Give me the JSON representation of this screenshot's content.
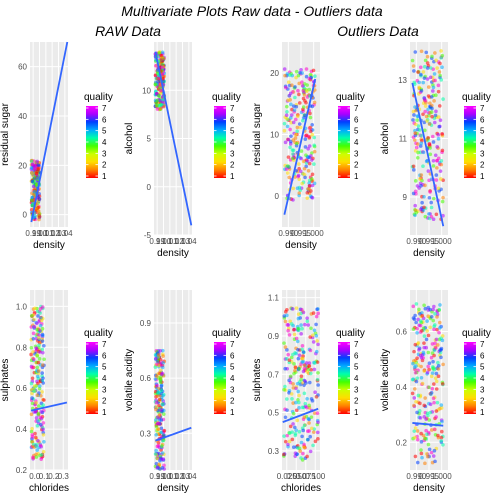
{
  "title": "Multivariate Plots Raw data - Outliers data",
  "subtitles": [
    "RAW Data",
    "Outliers Data"
  ],
  "legend": {
    "title": "quality",
    "labels": [
      "7",
      "6",
      "5",
      "4",
      "3",
      "2",
      "1"
    ]
  },
  "chart_data": [
    {
      "type": "scatter",
      "group": "RAW Data",
      "xlabel": "density",
      "ylabel": "residual sugar",
      "xticks": [
        "0.99",
        "1.00",
        "1.01",
        "1.02",
        "1.03",
        "1.04"
      ],
      "xlim": [
        0.985,
        1.04
      ],
      "yticks": [
        "0",
        "20",
        "40",
        "60"
      ],
      "yticks_values": [
        0,
        20,
        40,
        60
      ],
      "ylim": [
        -5,
        70
      ],
      "trend": {
        "x": [
          0.987,
          1.039
        ],
        "y": [
          -3,
          70
        ],
        "color": "#3366ff"
      },
      "cloud": {
        "xmin": 0.987,
        "xmax": 0.999,
        "ymin": -2,
        "ymax": 22,
        "n": 220
      }
    },
    {
      "type": "scatter",
      "group": "RAW Data",
      "xlabel": "density",
      "ylabel": "alcohol",
      "xticks": [
        "0.99",
        "1.00",
        "1.01",
        "1.02",
        "1.03",
        "1.04"
      ],
      "xlim": [
        0.985,
        1.04
      ],
      "yticks": [
        "-5",
        "0",
        "5",
        "10"
      ],
      "yticks_values": [
        -5,
        0,
        5,
        10
      ],
      "ylim": [
        -5,
        15
      ],
      "trend": {
        "x": [
          0.987,
          1.039
        ],
        "y": [
          14,
          -4
        ],
        "color": "#3366ff"
      },
      "cloud": {
        "xmin": 0.987,
        "xmax": 1.0,
        "ymin": 8,
        "ymax": 14,
        "n": 220
      }
    },
    {
      "type": "scatter",
      "group": "Outliers Data",
      "xlabel": "density",
      "ylabel": "residual sugar",
      "xticks": [
        "0.990",
        "0.995",
        "1.000"
      ],
      "xlim": [
        0.986,
        1.002
      ],
      "yticks": [
        "0",
        "10",
        "20"
      ],
      "yticks_values": [
        0,
        10,
        20
      ],
      "ylim": [
        -5,
        25
      ],
      "trend": {
        "x": [
          0.987,
          1.0
        ],
        "y": [
          -3,
          19
        ],
        "color": "#3366ff"
      },
      "cloud": {
        "xmin": 0.987,
        "xmax": 1.0,
        "ymin": -1,
        "ymax": 21,
        "n": 260
      }
    },
    {
      "type": "scatter",
      "group": "Outliers Data",
      "xlabel": "density",
      "ylabel": "alcohol",
      "xticks": [
        "0.990",
        "0.995",
        "1.000"
      ],
      "xlim": [
        0.986,
        1.002
      ],
      "yticks": [
        "9",
        "11",
        "13"
      ],
      "yticks_values": [
        9,
        11,
        13
      ],
      "ylim": [
        7.7,
        14.3
      ],
      "trend": {
        "x": [
          0.987,
          1.0
        ],
        "y": [
          12.9,
          8.0
        ],
        "color": "#3366ff"
      },
      "cloud": {
        "xmin": 0.987,
        "xmax": 1.0,
        "ymin": 8.2,
        "ymax": 14,
        "n": 260
      }
    },
    {
      "type": "scatter",
      "group": "RAW Data",
      "xlabel": "chlorides",
      "ylabel": "sulphates",
      "xticks": [
        "0.0",
        "0.1",
        "0.2",
        "0.3"
      ],
      "xlim": [
        0.0,
        0.35
      ],
      "yticks": [
        "0.2",
        "0.4",
        "0.6",
        "0.8",
        "1.0"
      ],
      "yticks_values": [
        0.2,
        0.4,
        0.6,
        0.8,
        1.0
      ],
      "ylim": [
        0.2,
        1.08
      ],
      "trend": {
        "x": [
          0.01,
          0.34
        ],
        "y": [
          0.49,
          0.53
        ],
        "color": "#3366ff"
      },
      "cloud": {
        "xmin": 0.01,
        "xmax": 0.13,
        "ymin": 0.25,
        "ymax": 1.0,
        "n": 220
      }
    },
    {
      "type": "scatter",
      "group": "RAW Data",
      "xlabel": "density",
      "ylabel": "volatile acidity",
      "xticks": [
        "0.99",
        "1.00",
        "1.01",
        "1.02",
        "1.03",
        "1.04"
      ],
      "xlim": [
        0.985,
        1.04
      ],
      "yticks": [
        "0.3",
        "0.6",
        "0.9"
      ],
      "yticks_values": [
        0.3,
        0.6,
        0.9
      ],
      "ylim": [
        0.1,
        1.08
      ],
      "trend": {
        "x": [
          0.987,
          1.039
        ],
        "y": [
          0.26,
          0.33
        ],
        "color": "#3366ff"
      },
      "cloud": {
        "xmin": 0.987,
        "xmax": 1.0,
        "ymin": 0.1,
        "ymax": 0.75,
        "n": 220
      }
    },
    {
      "type": "scatter",
      "group": "Outliers Data",
      "xlabel": "chlorides",
      "ylabel": "sulphates",
      "xticks": [
        "0.025",
        "0.050",
        "0.075",
        "0.100"
      ],
      "xlim": [
        0.0,
        0.105
      ],
      "yticks": [
        "0.3",
        "0.5",
        "0.7",
        "0.9",
        "1.1"
      ],
      "yticks_values": [
        0.3,
        0.5,
        0.7,
        0.9,
        1.1
      ],
      "ylim": [
        0.2,
        1.14
      ],
      "trend": {
        "x": [
          0.002,
          0.1
        ],
        "y": [
          0.45,
          0.52
        ],
        "color": "#3366ff"
      },
      "cloud": {
        "xmin": 0.005,
        "xmax": 0.1,
        "ymin": 0.25,
        "ymax": 1.05,
        "n": 260
      }
    },
    {
      "type": "scatter",
      "group": "Outliers Data",
      "xlabel": "density",
      "ylabel": "volatile acidity",
      "xticks": [
        "0.990",
        "0.995",
        "1.000"
      ],
      "xlim": [
        0.986,
        1.002
      ],
      "yticks": [
        "0.2",
        "0.4",
        "0.6"
      ],
      "yticks_values": [
        0.2,
        0.4,
        0.6
      ],
      "ylim": [
        0.1,
        0.75
      ],
      "trend": {
        "x": [
          0.987,
          1.0
        ],
        "y": [
          0.27,
          0.26
        ],
        "color": "#3366ff"
      },
      "cloud": {
        "xmin": 0.987,
        "xmax": 1.0,
        "ymin": 0.12,
        "ymax": 0.7,
        "n": 260
      }
    }
  ]
}
